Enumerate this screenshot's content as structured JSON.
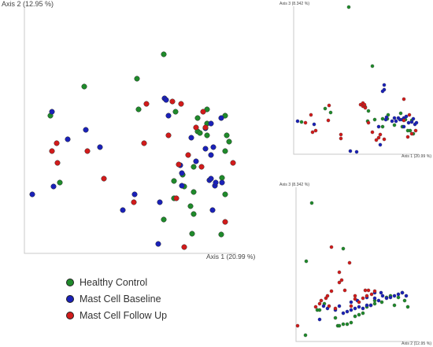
{
  "colors": {
    "healthy_control": "#1f8a2b",
    "mast_cell_baseline": "#1a21b8",
    "mast_cell_follow_up": "#d11b1b"
  },
  "legend": [
    {
      "label": "Healthy Control",
      "color": "#1f8a2b"
    },
    {
      "label": "Mast Cell Baseline",
      "color": "#1a21b8"
    },
    {
      "label": "Mast Cell Follow Up",
      "color": "#d11b1b"
    }
  ],
  "chart_data": [
    {
      "type": "scatter",
      "xlabel": "Axis 1 (20.99 %)",
      "ylabel": "Axis 2 (12.95 %)",
      "xlim": [
        0,
        300
      ],
      "ylim": [
        0,
        310
      ],
      "grid": false,
      "series": [
        {
          "name": "Healthy Control",
          "points": [
            [
              33,
              175
            ],
            [
              45,
              90
            ],
            [
              76,
              212
            ],
            [
              143,
              222
            ],
            [
              177,
              253
            ],
            [
              145,
              183
            ],
            [
              190,
              92
            ],
            [
              192,
              180
            ],
            [
              190,
              70
            ],
            [
              177,
              43
            ],
            [
              203,
              85
            ],
            [
              201,
              100
            ],
            [
              213,
              25
            ],
            [
              211,
              60
            ],
            [
              215,
              78
            ],
            [
              215,
              110
            ],
            [
              220,
              172
            ],
            [
              220,
              155
            ],
            [
              223,
              153
            ],
            [
              232,
              150
            ],
            [
              215,
              50
            ],
            [
              232,
              183
            ],
            [
              232,
              165
            ],
            [
              255,
              175
            ],
            [
              255,
              75
            ],
            [
              250,
              24
            ],
            [
              255,
              130
            ],
            [
              257,
              150
            ],
            [
              260,
              142
            ],
            [
              251,
              96
            ]
          ]
        },
        {
          "name": "Mast Cell Baseline",
          "points": [
            [
              35,
              180
            ],
            [
              10,
              75
            ],
            [
              37,
              85
            ],
            [
              55,
              145
            ],
            [
              78,
              157
            ],
            [
              96,
              135
            ],
            [
              125,
              55
            ],
            [
              140,
              75
            ],
            [
              170,
              12
            ],
            [
              172,
              65
            ],
            [
              178,
              197
            ],
            [
              180,
              195
            ],
            [
              183,
              175
            ],
            [
              200,
              102
            ],
            [
              198,
              112
            ],
            [
              212,
              147
            ],
            [
              218,
              117
            ],
            [
              230,
              159
            ],
            [
              230,
              133
            ],
            [
              235,
              93
            ],
            [
              237,
              125
            ],
            [
              237,
              165
            ],
            [
              240,
              135
            ],
            [
              242,
              86
            ],
            [
              250,
              172
            ],
            [
              251,
              90
            ],
            [
              237,
              95
            ],
            [
              243,
              90
            ],
            [
              200,
              86
            ],
            [
              239,
              55
            ]
          ]
        },
        {
          "name": "Mast Cell Follow Up",
          "points": [
            [
              35,
              130
            ],
            [
              42,
              115
            ],
            [
              41,
              140
            ],
            [
              80,
              130
            ],
            [
              101,
              95
            ],
            [
              139,
              65
            ],
            [
              152,
              140
            ],
            [
              155,
              190
            ],
            [
              183,
              150
            ],
            [
              188,
              193
            ],
            [
              193,
              70
            ],
            [
              199,
              190
            ],
            [
              218,
              160
            ],
            [
              225,
              110
            ],
            [
              227,
              180
            ],
            [
              230,
              160
            ],
            [
              255,
              40
            ],
            [
              265,
              115
            ],
            [
              208,
              125
            ],
            [
              203,
              8
            ],
            [
              196,
              113
            ]
          ]
        }
      ]
    },
    {
      "type": "scatter",
      "xlabel": "Axis 1 (20.99 %)",
      "ylabel": "Axis 3 (8.342 %)",
      "grid": false,
      "series": [
        {
          "name": "Healthy Control",
          "points": [
            [
              70,
              187
            ],
            [
              100,
              112
            ],
            [
              10,
              41
            ],
            [
              40,
              58
            ],
            [
              47,
              53
            ],
            [
              91,
              60
            ],
            [
              95,
              55
            ],
            [
              94,
              42
            ],
            [
              103,
              44
            ],
            [
              113,
              45
            ],
            [
              113,
              35
            ],
            [
              119,
              45
            ],
            [
              128,
              37
            ],
            [
              138,
              35
            ],
            [
              142,
              44
            ],
            [
              152,
              26
            ],
            [
              150,
              43
            ],
            [
              148,
              30
            ],
            [
              120,
              50
            ],
            [
              136,
              52
            ],
            [
              145,
              30
            ]
          ]
        },
        {
          "name": "Mast Cell Baseline",
          "points": [
            [
              5,
              42
            ],
            [
              26,
              38
            ],
            [
              72,
              4
            ],
            [
              80,
              3
            ],
            [
              110,
              12
            ],
            [
              115,
              88
            ],
            [
              117,
              44
            ],
            [
              118,
              47
            ],
            [
              125,
              42
            ],
            [
              128,
              46
            ],
            [
              130,
              42
            ],
            [
              133,
              46
            ],
            [
              135,
              44
            ],
            [
              138,
              44
            ],
            [
              140,
              46
            ],
            [
              143,
              48
            ],
            [
              146,
              40
            ],
            [
              150,
              41
            ],
            [
              152,
              45
            ],
            [
              154,
              38
            ],
            [
              156,
              40
            ],
            [
              115,
              82
            ],
            [
              113,
              80
            ],
            [
              140,
              35
            ],
            [
              108,
              35
            ]
          ]
        },
        {
          "name": "Mast Cell Follow Up",
          "points": [
            [
              15,
              40
            ],
            [
              22,
              50
            ],
            [
              24,
              28
            ],
            [
              28,
              30
            ],
            [
              44,
              43
            ],
            [
              45,
              62
            ],
            [
              60,
              20
            ],
            [
              60,
              25
            ],
            [
              85,
              63
            ],
            [
              88,
              61
            ],
            [
              88,
              65
            ],
            [
              90,
              63
            ],
            [
              91,
              59
            ],
            [
              95,
              40
            ],
            [
              100,
              28
            ],
            [
              105,
              18
            ],
            [
              108,
              21
            ],
            [
              110,
              25
            ],
            [
              115,
              19
            ],
            [
              145,
              22
            ],
            [
              140,
              70
            ],
            [
              150,
              26
            ],
            [
              147,
              50
            ],
            [
              155,
              30
            ],
            [
              140,
              43
            ]
          ]
        }
      ]
    },
    {
      "type": "scatter",
      "xlabel": "Axis 2 (12.95 %)",
      "ylabel": "Axis 3 (8.342 %)",
      "grid": false,
      "series": [
        {
          "name": "Healthy Control",
          "points": [
            [
              12,
              8
            ],
            [
              13,
              102
            ],
            [
              20,
              176
            ],
            [
              27,
              40
            ],
            [
              30,
              40
            ],
            [
              36,
              48
            ],
            [
              50,
              30
            ],
            [
              53,
              20
            ],
            [
              55,
              20
            ],
            [
              60,
              22
            ],
            [
              65,
              22
            ],
            [
              70,
              24
            ],
            [
              75,
              32
            ],
            [
              80,
              34
            ],
            [
              85,
              36
            ],
            [
              90,
              44
            ],
            [
              95,
              46
            ],
            [
              100,
              52
            ],
            [
              109,
              50
            ],
            [
              115,
              56
            ],
            [
              120,
              58
            ],
            [
              125,
              46
            ],
            [
              130,
              56
            ],
            [
              135,
              62
            ],
            [
              138,
              52
            ],
            [
              142,
              44
            ],
            [
              60,
              118
            ],
            [
              100,
              48
            ]
          ]
        },
        {
          "name": "Mast Cell Baseline",
          "points": [
            [
              30,
              28
            ],
            [
              35,
              45
            ],
            [
              40,
              42
            ],
            [
              50,
              40
            ],
            [
              55,
              45
            ],
            [
              60,
              36
            ],
            [
              65,
              38
            ],
            [
              70,
              40
            ],
            [
              75,
              42
            ],
            [
              80,
              44
            ],
            [
              85,
              42
            ],
            [
              90,
              46
            ],
            [
              95,
              46
            ],
            [
              100,
              55
            ],
            [
              105,
              52
            ],
            [
              110,
              58
            ],
            [
              115,
              55
            ],
            [
              120,
              56
            ],
            [
              125,
              58
            ],
            [
              130,
              60
            ],
            [
              135,
              62
            ],
            [
              140,
              58
            ],
            [
              90,
              56
            ],
            [
              100,
              62
            ],
            [
              108,
              62
            ],
            [
              70,
              50
            ],
            [
              78,
              52
            ]
          ]
        },
        {
          "name": "Mast Cell Follow Up",
          "points": [
            [
              2,
              20
            ],
            [
              25,
              44
            ],
            [
              30,
              48
            ],
            [
              32,
              52
            ],
            [
              38,
              55
            ],
            [
              40,
              58
            ],
            [
              42,
              45
            ],
            [
              45,
              64
            ],
            [
              50,
              42
            ],
            [
              55,
              75
            ],
            [
              62,
              65
            ],
            [
              70,
              45
            ],
            [
              75,
              58
            ],
            [
              80,
              50
            ],
            [
              85,
              55
            ],
            [
              88,
              65
            ],
            [
              90,
              58
            ],
            [
              92,
              65
            ],
            [
              96,
              60
            ],
            [
              55,
              88
            ],
            [
              58,
              78
            ],
            [
              45,
              120
            ],
            [
              68,
              100
            ],
            [
              75,
              54
            ],
            [
              100,
              64
            ]
          ]
        }
      ]
    }
  ]
}
